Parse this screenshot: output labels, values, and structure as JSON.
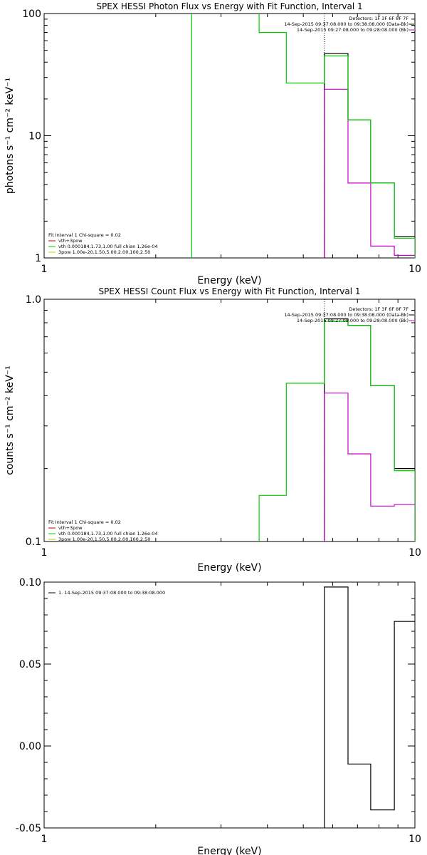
{
  "chart_data": [
    {
      "type": "line",
      "id": "photon",
      "title": "SPEX HESSI Photon Flux vs Energy with Fit Function, Interval 1",
      "xlabel": "Energy (keV)",
      "ylabel": "photons s⁻¹ cm⁻² keV⁻¹",
      "xscale": "log",
      "yscale": "log",
      "xlim": [
        1,
        10
      ],
      "ylim": [
        1,
        100
      ],
      "xticks": [
        {
          "v": 1,
          "label": "1"
        },
        {
          "v": 10,
          "label": "10"
        }
      ],
      "yticks": [
        {
          "v": 1,
          "label": "1"
        },
        {
          "v": 10,
          "label": "10"
        },
        {
          "v": 100,
          "label": "100"
        }
      ],
      "vline": {
        "x": 5.7,
        "color": "#000000",
        "dash": true
      },
      "info": [
        "Detectors: 1F 3F 6F 8F 7F",
        "14-Sep-2015 09:37:08.000 to 09:38:08.000 (Data-Bk)",
        "14-Sep-2015 09:27:08.000 to 09:28:08.000 (Bk)"
      ],
      "info_legend": [
        {
          "color": "#000000"
        },
        {
          "color": "#cc00cc"
        }
      ],
      "legend_title": "Fit Interval 1    Chi-square = 0.02",
      "legend": [
        {
          "label": "vth+3pow",
          "color": "#cc0000"
        },
        {
          "label": "vth 0.000184,1.73,1.00  full chian 1.26e-04",
          "color": "#00cc00"
        },
        {
          "label": "3pow 1.00e-20,1.50,5.00,2.00,100,2.50",
          "color": "#cccc00"
        }
      ],
      "series": [
        {
          "role": "data",
          "color": "#000000",
          "points": [
            [
              5.7,
              1
            ],
            [
              5.7,
              47
            ],
            [
              6.6,
              47
            ],
            [
              6.6,
              13.5
            ],
            [
              7.6,
              13.5
            ],
            [
              7.6,
              4.1
            ],
            [
              8.8,
              4.1
            ],
            [
              8.8,
              1.5
            ],
            [
              10,
              1.5
            ]
          ]
        },
        {
          "role": "background",
          "color": "#cc00cc",
          "points": [
            [
              5.7,
              1
            ],
            [
              5.7,
              24
            ],
            [
              6.6,
              24
            ],
            [
              6.6,
              4.1
            ],
            [
              7.6,
              4.1
            ],
            [
              7.6,
              1.25
            ],
            [
              8.8,
              1.25
            ],
            [
              8.8,
              1.05
            ],
            [
              10,
              1.05
            ]
          ]
        },
        {
          "role": "model",
          "color": "#00cc00",
          "points": [
            [
              2.5,
              1
            ],
            [
              2.5,
              100
            ]
          ]
        },
        {
          "role": "model",
          "color": "#00cc00",
          "points": [
            [
              3.8,
              100
            ],
            [
              3.8,
              70
            ],
            [
              4.5,
              70
            ],
            [
              4.5,
              27
            ],
            [
              5.7,
              27
            ],
            [
              5.7,
              45
            ],
            [
              6.6,
              45
            ],
            [
              6.6,
              13.5
            ],
            [
              7.6,
              13.5
            ],
            [
              7.6,
              4.1
            ],
            [
              8.8,
              4.1
            ],
            [
              8.8,
              1.45
            ],
            [
              10,
              1.45
            ],
            [
              10,
              1
            ]
          ]
        }
      ]
    },
    {
      "type": "line",
      "id": "count",
      "title": "SPEX HESSI Count Flux vs Energy with Fit Function, Interval 1",
      "xlabel": "Energy (keV)",
      "ylabel": "counts s⁻¹ cm⁻² keV⁻¹",
      "xscale": "log",
      "yscale": "log",
      "xlim": [
        1,
        10
      ],
      "ylim": [
        0.1,
        1.0
      ],
      "xticks": [
        {
          "v": 1,
          "label": "1"
        },
        {
          "v": 10,
          "label": "10"
        }
      ],
      "yticks": [
        {
          "v": 0.1,
          "label": "0.1"
        },
        {
          "v": 1,
          "label": "1.0"
        }
      ],
      "vline": {
        "x": 5.7,
        "color": "#000000",
        "dash": true
      },
      "info": [
        "Detectors: 1F 3F 6F 8F 7F",
        "14-Sep-2015 09:37:08.000 to 09:38:08.000 (Data-Bk)",
        "14-Sep-2015 09:27:08.000 to 09:28:08.000 (Bk)"
      ],
      "info_legend": [
        {
          "color": "#000000"
        },
        {
          "color": "#cc00cc"
        }
      ],
      "legend_title": "Fit Interval 1    Chi-square = 0.02",
      "legend": [
        {
          "label": "vth+3pow",
          "color": "#cc0000"
        },
        {
          "label": "vth 0.000184,1.73,1.00  full chian 1.26e-04",
          "color": "#00cc00"
        },
        {
          "label": "3pow 1.00e-20,1.50,5.00,2.00,100,2.50",
          "color": "#cccc00"
        }
      ],
      "series": [
        {
          "role": "data",
          "color": "#000000",
          "points": [
            [
              5.7,
              0.1
            ],
            [
              5.7,
              0.83
            ],
            [
              6.6,
              0.83
            ],
            [
              6.6,
              0.78
            ],
            [
              7.6,
              0.78
            ],
            [
              7.6,
              0.44
            ],
            [
              8.8,
              0.44
            ],
            [
              8.8,
              0.2
            ],
            [
              10,
              0.2
            ]
          ]
        },
        {
          "role": "background",
          "color": "#cc00cc",
          "points": [
            [
              5.7,
              0.1
            ],
            [
              5.7,
              0.41
            ],
            [
              6.6,
              0.41
            ],
            [
              6.6,
              0.23
            ],
            [
              7.6,
              0.23
            ],
            [
              7.6,
              0.14
            ],
            [
              8.8,
              0.14
            ],
            [
              8.8,
              0.142
            ],
            [
              10,
              0.142
            ]
          ]
        },
        {
          "role": "model",
          "color": "#00cc00",
          "points": [
            [
              3.8,
              0.1
            ],
            [
              3.8,
              0.155
            ],
            [
              4.5,
              0.155
            ],
            [
              4.5,
              0.45
            ],
            [
              5.7,
              0.45
            ],
            [
              5.7,
              0.81
            ],
            [
              6.6,
              0.81
            ],
            [
              6.6,
              0.78
            ],
            [
              7.6,
              0.78
            ],
            [
              7.6,
              0.44
            ],
            [
              8.8,
              0.44
            ],
            [
              8.8,
              0.196
            ],
            [
              10,
              0.196
            ],
            [
              10,
              0.1
            ]
          ]
        }
      ]
    },
    {
      "type": "line",
      "id": "residuals",
      "title": "",
      "xlabel": "Energy (keV)",
      "ylabel": "",
      "xscale": "log",
      "yscale": "linear",
      "xlim": [
        1,
        10
      ],
      "ylim": [
        -0.05,
        0.1
      ],
      "xticks": [
        {
          "v": 1,
          "label": "1"
        },
        {
          "v": 10,
          "label": "10"
        }
      ],
      "yticks": [
        {
          "v": 0.1,
          "label": "0.10"
        },
        {
          "v": 0.05,
          "label": "0.05"
        },
        {
          "v": 0,
          "label": "0.00"
        },
        {
          "v": -0.05,
          "label": "-0.05"
        }
      ],
      "legend_title": "",
      "legend": [
        {
          "label": "1. 14-Sep-2015 09:37:08.000 to 09:38:08.000",
          "color": "#000000"
        }
      ],
      "series": [
        {
          "role": "residual",
          "color": "#000000",
          "points": [
            [
              5.7,
              -0.05
            ],
            [
              5.7,
              0.097
            ],
            [
              6.6,
              0.097
            ],
            [
              6.6,
              -0.011
            ],
            [
              7.6,
              -0.011
            ],
            [
              7.6,
              -0.039
            ],
            [
              8.8,
              -0.039
            ],
            [
              8.8,
              0.076
            ],
            [
              10,
              0.076
            ]
          ]
        }
      ]
    }
  ]
}
